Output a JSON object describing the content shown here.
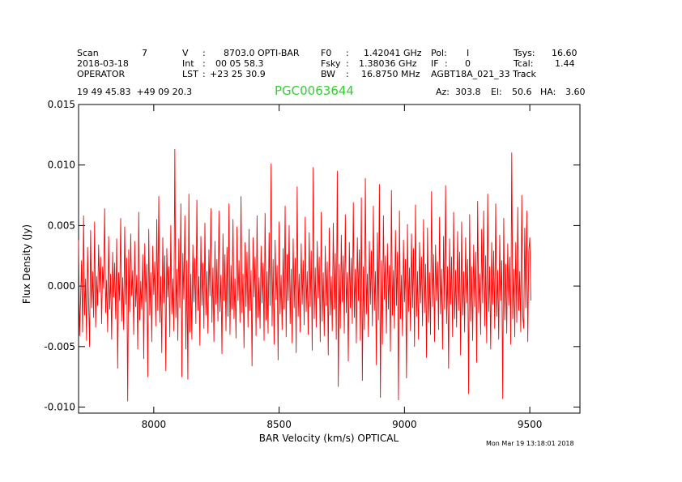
{
  "header": {
    "scan_label": "Scan",
    "scan_value": "7",
    "date": "2018-03-18",
    "observer": "OPERATOR",
    "v_label": "V",
    "v_colon": ":",
    "v_value": "8703.0 OPTI-BAR",
    "int_label": "Int",
    "int_colon": ":",
    "int_value": "00 05 58.3",
    "lst_label": "LST",
    "lst_colon": ":",
    "lst_value": "+23 25 30.9",
    "f0_label": "F0",
    "f0_colon": ":",
    "f0_value": "1.42041 GHz",
    "fsky_label": "Fsky",
    "fsky_colon": ":",
    "fsky_value": "1.38036 GHz",
    "bw_label": "BW",
    "bw_colon": ":",
    "bw_value": "16.8750 MHz",
    "pol_label": "Pol:",
    "pol_value": "I",
    "if_label": "IF",
    "if_colon": ":",
    "if_value": "0",
    "project": "AGBT18A_021_33 Track",
    "tsys_label": "Tsys:",
    "tsys_value": "16.60",
    "tcal_label": "Tcal:",
    "tcal_value": "1.44",
    "coords": "19 49 45.83  +49 09 20.3",
    "az_label": "Az:",
    "az_value": "303.8",
    "el_label": "El:",
    "el_value": "50.6",
    "ha_label": "HA:",
    "ha_value": "3.60"
  },
  "source_name": "PGC0063644",
  "timestamp": "Mon Mar 19 13:18:01 2018",
  "colors": {
    "line": "#ff0000",
    "source": "#2fd12f",
    "axes": "#000000"
  },
  "chart_data": {
    "type": "line",
    "title": "PGC0063644",
    "xlabel": "BAR Velocity (km/s) OPTICAL",
    "ylabel": "Flux Density (Jy)",
    "xlim": [
      7700,
      9700
    ],
    "ylim": [
      -0.0105,
      0.015
    ],
    "xticks": [
      8000,
      8500,
      9000,
      9500
    ],
    "xtick_labels": [
      "8000",
      "8500",
      "9000",
      "9500"
    ],
    "yticks": [
      -0.01,
      -0.005,
      0.0,
      0.005,
      0.01,
      0.015
    ],
    "ytick_labels": [
      "-0.010",
      "-0.005",
      "0.000",
      "0.005",
      "0.010",
      "0.015"
    ],
    "grid": false,
    "series": [
      {
        "name": "spectrum",
        "x_start": 7700,
        "x_step": 4,
        "values": [
          0.0038,
          -0.0041,
          -0.0012,
          0.0021,
          -0.0038,
          0.0058,
          -0.0024,
          0.0006,
          -0.0045,
          0.0032,
          -0.0011,
          -0.005,
          0.0046,
          -0.0018,
          0.0012,
          -0.0026,
          0.0053,
          -0.0034,
          0.0008,
          -0.0016,
          0.0034,
          -0.0005,
          0.0024,
          -0.0031,
          0.0016,
          -0.0002,
          0.0064,
          -0.0022,
          0.0005,
          -0.0038,
          0.0041,
          -0.0019,
          0.001,
          -0.0044,
          0.0028,
          -0.0009,
          0.0019,
          -0.0027,
          0.0039,
          -0.0068,
          0.0011,
          -0.0012,
          0.0056,
          -0.0029,
          0.0007,
          -0.0036,
          0.0049,
          -0.0015,
          0.0023,
          -0.0095,
          0.003,
          -0.0021,
          0.0043,
          -0.0008,
          0.0013,
          -0.004,
          0.0037,
          -0.0017,
          0.0009,
          -0.0052,
          0.0061,
          -0.0028,
          0.0004,
          -0.0019,
          0.0026,
          -0.006,
          0.0035,
          -0.0013,
          0.0018,
          -0.0075,
          0.0047,
          -0.0024,
          0.0011,
          -0.0046,
          0.0033,
          -0.0007,
          0.002,
          -0.0033,
          0.0055,
          -0.002,
          0.0074,
          -0.003,
          0.0008,
          -0.0055,
          0.004,
          -0.0014,
          0.0025,
          -0.007,
          0.0031,
          -0.0009,
          0.0016,
          -0.0042,
          0.005,
          -0.0023,
          0.0006,
          -0.0037,
          0.0113,
          -0.0026,
          0.0014,
          -0.0045,
          0.0039,
          -0.0018,
          0.0068,
          -0.0075,
          0.0027,
          -0.0011,
          0.0058,
          -0.0052,
          0.0021,
          -0.0077,
          0.0076,
          -0.0038,
          0.001,
          -0.0044,
          0.0034,
          -0.0013,
          0.0023,
          -0.0031,
          0.0071,
          -0.002,
          0.0008,
          -0.0049,
          0.0041,
          -0.0016,
          0.0019,
          -0.0035,
          0.0052,
          -0.0024,
          0.0012,
          -0.0039,
          0.003,
          -0.0008,
          0.0064,
          -0.003,
          0.0015,
          -0.0046,
          0.0037,
          -0.0015,
          0.0022,
          -0.0029,
          0.0062,
          -0.0021,
          0.0009,
          -0.0056,
          0.0043,
          -0.0012,
          0.0026,
          -0.0037,
          0.0032,
          -0.0025,
          0.0068,
          -0.004,
          0.0017,
          -0.0019,
          0.0055,
          -0.0027,
          0.0006,
          -0.0043,
          0.0049,
          -0.0012,
          0.0021,
          -0.003,
          0.0074,
          -0.0022,
          0.001,
          -0.0051,
          0.0036,
          -0.0017,
          0.0028,
          -0.0034,
          0.0047,
          -0.002,
          0.0013,
          -0.0066,
          0.004,
          -0.0009,
          0.0024,
          -0.0041,
          0.0058,
          -0.0026,
          0.0007,
          -0.0035,
          0.0033,
          -0.0014,
          0.0019,
          -0.0045,
          0.006,
          -0.0028,
          0.0012,
          -0.0039,
          0.0044,
          -0.0016,
          0.0101,
          -0.0033,
          0.0022,
          -0.0048,
          0.0038,
          -0.0011,
          0.0017,
          -0.0061,
          0.0053,
          -0.0023,
          0.0009,
          -0.0036,
          0.0031,
          -0.0019,
          0.0066,
          -0.0042,
          0.0026,
          -0.0012,
          0.005,
          -0.0031,
          0.0014,
          -0.0047,
          0.0039,
          -0.0018,
          0.0023,
          -0.0055,
          0.0082,
          -0.0025,
          0.001,
          -0.0038,
          0.0035,
          -0.0015,
          0.0021,
          -0.0032,
          0.0057,
          -0.0021,
          0.0012,
          -0.004,
          0.0044,
          -0.0017,
          0.0029,
          -0.0053,
          0.0098,
          -0.0027,
          0.0015,
          -0.0034,
          0.0037,
          -0.001,
          0.0024,
          -0.0046,
          0.0061,
          -0.0029,
          0.0011,
          -0.0041,
          0.0033,
          -0.0016,
          0.002,
          -0.0057,
          0.0048,
          -0.0024,
          0.0008,
          -0.0037,
          0.0052,
          -0.0019,
          0.0027,
          -0.0044,
          0.0095,
          -0.0083,
          0.0018,
          -0.0035,
          0.0042,
          -0.0013,
          0.0025,
          -0.0039,
          0.0059,
          -0.0022,
          0.0011,
          -0.0062,
          0.0036,
          -0.0018,
          0.0023,
          -0.0031,
          0.0069,
          -0.0026,
          0.0014,
          -0.0047,
          0.004,
          -0.0012,
          0.003,
          -0.0045,
          0.0073,
          -0.0078,
          0.0016,
          -0.0036,
          0.0089,
          -0.0023,
          0.001,
          -0.0042,
          0.0037,
          -0.0015,
          0.0029,
          -0.0033,
          0.0066,
          -0.002,
          0.0012,
          -0.0065,
          0.0044,
          -0.0028,
          0.0084,
          -0.0092,
          0.0021,
          -0.0048,
          0.0058,
          -0.0011,
          0.0025,
          -0.0039,
          0.0035,
          -0.0019,
          0.0017,
          -0.0054,
          0.0079,
          -0.0024,
          0.0013,
          -0.0035,
          0.0046,
          -0.0016,
          0.0028,
          -0.0094,
          0.0062,
          -0.0027,
          0.0009,
          -0.0041,
          0.0038,
          -0.0013,
          0.0022,
          -0.0076,
          0.0051,
          -0.0021,
          0.0015,
          -0.0037,
          0.0043,
          -0.0018,
          0.0031,
          -0.005,
          0.0067,
          -0.0025,
          0.0012,
          -0.0044,
          0.0036,
          -0.0014,
          0.0024,
          -0.0033,
          0.0055,
          -0.0022,
          0.0018,
          -0.0059,
          0.0048,
          -0.003,
          0.0011,
          -0.004,
          0.0078,
          -0.0017,
          0.0026,
          -0.0046,
          0.0034,
          -0.0012,
          0.002,
          -0.0036,
          0.0057,
          -0.0023,
          0.0014,
          -0.0052,
          0.0041,
          -0.0019,
          0.0083,
          -0.0031,
          0.0016,
          -0.0068,
          0.0039,
          -0.0015,
          0.0024,
          -0.0042,
          0.0061,
          -0.0027,
          0.0013,
          -0.0034,
          0.0045,
          -0.002,
          0.0028,
          -0.0057,
          0.0053,
          -0.0024,
          0.0012,
          -0.0038,
          0.004,
          -0.0014,
          0.0022,
          -0.0089,
          0.0059,
          -0.0029,
          0.0016,
          -0.0045,
          0.0034,
          -0.0017,
          0.0028,
          -0.0063,
          0.007,
          -0.0022,
          0.001,
          -0.004,
          0.0047,
          -0.0014,
          0.0062,
          -0.0033,
          0.0025,
          -0.0047,
          0.0076,
          -0.0021,
          0.0016,
          -0.0052,
          0.0036,
          -0.0015,
          0.0029,
          -0.0035,
          0.0068,
          -0.0025,
          0.0013,
          -0.0044,
          0.0042,
          -0.0012,
          0.0021,
          -0.0093,
          0.0056,
          -0.0028,
          0.0018,
          -0.0039,
          0.0035,
          -0.0016,
          0.0024,
          -0.0048,
          0.011,
          -0.0027,
          0.0014,
          -0.0042,
          0.0036,
          -0.003,
          0.0065,
          -0.002,
          0.0012,
          -0.0038,
          0.0075,
          -0.0025,
          -0.0035,
          0.0048,
          -0.0018,
          0.0062,
          -0.0046,
          0.0029,
          0.004,
          -0.0012
        ]
      }
    ]
  }
}
